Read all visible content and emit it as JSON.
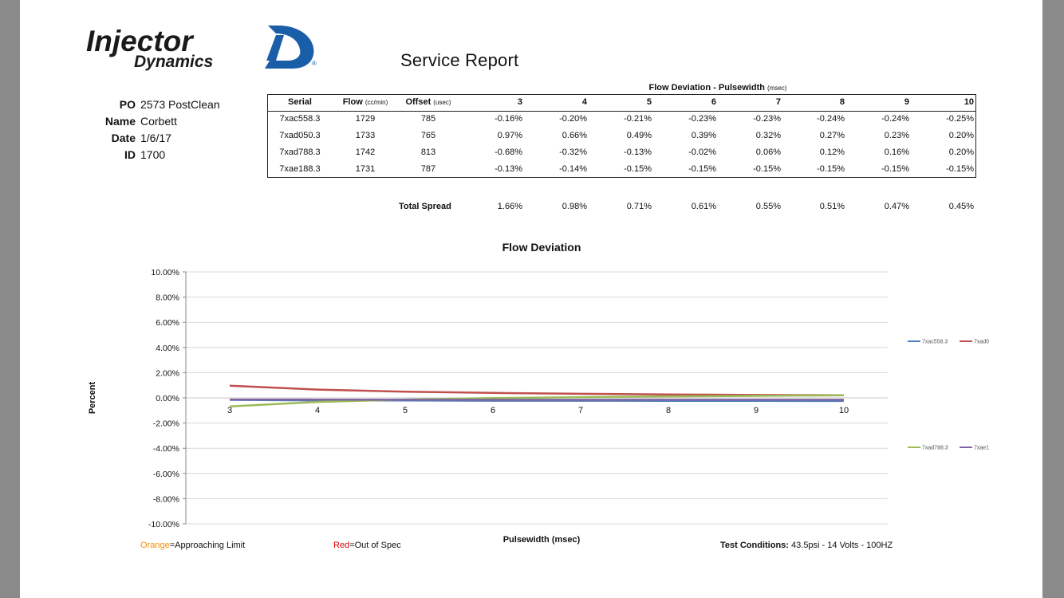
{
  "brand": {
    "logo_line1": "Injector",
    "logo_line2": "Dynamics",
    "registered": "®"
  },
  "report": {
    "title": "Service Report"
  },
  "info": [
    {
      "label": "PO",
      "value": "2573 PostClean"
    },
    {
      "label": "Name",
      "value": "Corbett"
    },
    {
      "label": "Date",
      "value": "1/6/17"
    },
    {
      "label": "ID",
      "value": "1700"
    }
  ],
  "table": {
    "group_heading": "Flow Deviation - Pulsewidth",
    "group_heading_unit": "(msec)",
    "col_serial": "Serial",
    "col_flow": "Flow",
    "col_flow_unit": "(cc/min)",
    "col_offset": "Offset",
    "col_offset_unit": "(usec)",
    "pulsewidths": [
      "3",
      "4",
      "5",
      "6",
      "7",
      "8",
      "9",
      "10"
    ],
    "rows": [
      {
        "serial": "7xac558.3",
        "flow": "1729",
        "offset": "785",
        "dev": [
          "-0.16%",
          "-0.20%",
          "-0.21%",
          "-0.23%",
          "-0.23%",
          "-0.24%",
          "-0.24%",
          "-0.25%"
        ]
      },
      {
        "serial": "7xad050.3",
        "flow": "1733",
        "offset": "765",
        "dev": [
          "0.97%",
          "0.66%",
          "0.49%",
          "0.39%",
          "0.32%",
          "0.27%",
          "0.23%",
          "0.20%"
        ]
      },
      {
        "serial": "7xad788.3",
        "flow": "1742",
        "offset": "813",
        "dev": [
          "-0.68%",
          "-0.32%",
          "-0.13%",
          "-0.02%",
          "0.06%",
          "0.12%",
          "0.16%",
          "0.20%"
        ]
      },
      {
        "serial": "7xae188.3",
        "flow": "1731",
        "offset": "787",
        "dev": [
          "-0.13%",
          "-0.14%",
          "-0.15%",
          "-0.15%",
          "-0.15%",
          "-0.15%",
          "-0.15%",
          "-0.15%"
        ]
      }
    ],
    "total_spread_label": "Total Spread",
    "total_spread": [
      "1.66%",
      "0.98%",
      "0.71%",
      "0.61%",
      "0.55%",
      "0.51%",
      "0.47%",
      "0.45%"
    ]
  },
  "chart_data": {
    "type": "line",
    "title": "Flow Deviation",
    "xlabel": "Pulsewidth (msec)",
    "ylabel": "Percent",
    "categories": [
      "3",
      "4",
      "5",
      "6",
      "7",
      "8",
      "9",
      "10"
    ],
    "ylim": [
      -10,
      10
    ],
    "y_ticks": [
      "10.00%",
      "8.00%",
      "6.00%",
      "4.00%",
      "2.00%",
      "0.00%",
      "-2.00%",
      "-4.00%",
      "-6.00%",
      "-8.00%",
      "-10.00%"
    ],
    "grid": true,
    "series": [
      {
        "name": "7xac558.3",
        "legend_label": "7xac558.3",
        "color": "#4f7fbf",
        "values": [
          -0.16,
          -0.2,
          -0.21,
          -0.23,
          -0.23,
          -0.24,
          -0.24,
          -0.25
        ]
      },
      {
        "name": "7xad050.3",
        "legend_label": "7xad0",
        "color": "#c0504d",
        "values": [
          0.97,
          0.66,
          0.49,
          0.39,
          0.32,
          0.27,
          0.23,
          0.2
        ]
      },
      {
        "name": "7xad788.3",
        "legend_label": "7xad788.3",
        "color": "#9bbb59",
        "values": [
          -0.68,
          -0.32,
          -0.13,
          -0.02,
          0.06,
          0.12,
          0.16,
          0.2
        ]
      },
      {
        "name": "7xae188.3",
        "legend_label": "7xae1",
        "color": "#8064a2",
        "values": [
          -0.13,
          -0.14,
          -0.15,
          -0.15,
          -0.15,
          -0.15,
          -0.15,
          -0.15
        ]
      }
    ]
  },
  "footer": {
    "orange_word": "Orange",
    "orange_rest": "=Approaching Limit",
    "orange_color": "#f39200",
    "red_word": "Red",
    "red_rest": "=Out of Spec",
    "red_color": "#e00000",
    "test_label": "Test Conditions:",
    "test_value": " 43.5psi - 14 Volts - 100HZ"
  },
  "colors": {
    "logo_blue": "#1a5ea8",
    "logo_text": "#1a1a1a"
  }
}
